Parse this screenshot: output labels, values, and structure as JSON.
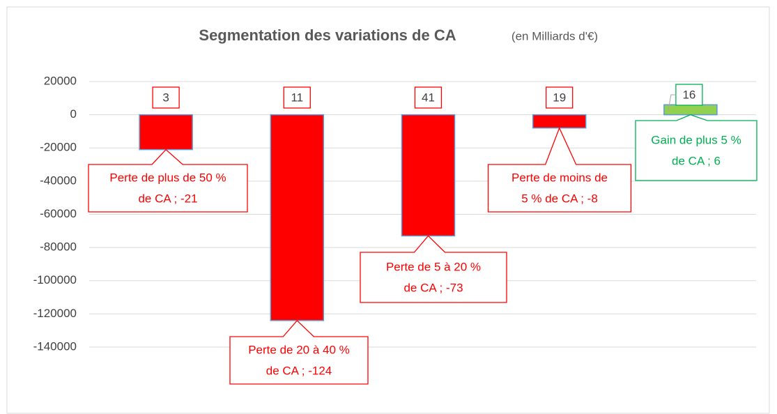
{
  "chart_data": {
    "type": "bar",
    "title": "Segmentation des variations de CA",
    "subtitle": "(en Milliards d'€)",
    "values": [
      -21000,
      -124000,
      -73000,
      -8000,
      6000
    ],
    "value_labels": [
      [
        "Perte de plus de 50 %",
        "de CA ; -21"
      ],
      [
        "Perte de 20 à 40 %",
        "de CA ; -124"
      ],
      [
        "Perte de 5 à 20 %",
        "de CA ; -73"
      ],
      [
        "Perte de moins de",
        "5 % de CA ; -8"
      ],
      [
        "Gain de plus 5 %",
        "de CA ; 6"
      ]
    ],
    "counts": [
      3,
      11,
      41,
      19,
      16
    ],
    "colors": [
      "#ff0000",
      "#ff0000",
      "#ff0000",
      "#ff0000",
      "#92d050"
    ],
    "label_colors": [
      "#ff0000",
      "#ff0000",
      "#ff0000",
      "#ff0000",
      "#00b050"
    ],
    "edgecolor": "#5b9bd5",
    "ylim": [
      -140000,
      20000
    ],
    "yticks": [
      -140000,
      -120000,
      -100000,
      -80000,
      -60000,
      -40000,
      -20000,
      0,
      20000
    ],
    "grid": true
  }
}
